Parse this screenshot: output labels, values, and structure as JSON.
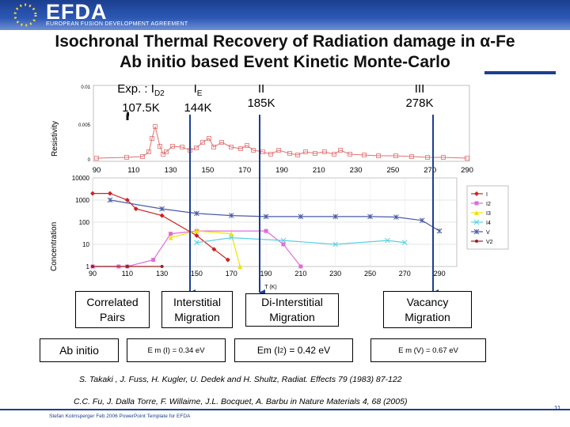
{
  "header": {
    "logo_word": "EFDA",
    "logo_subtitle": "EUROPEAN FUSION DEVELOPMENT AGREEMENT",
    "colors": {
      "band": "#1c3f8f",
      "star": "#f5d33c"
    }
  },
  "title": {
    "line1": "Isochronal Thermal Recovery of Radiation damage in α-Fe",
    "line2": "Ab initio based Event Kinetic Monte-Carlo"
  },
  "peaks": [
    {
      "label": "Exp. : I",
      "sub": "D2",
      "value": "107.5K"
    },
    {
      "label": "I",
      "sub": "E",
      "value": "144K"
    },
    {
      "label": "II",
      "sub": "",
      "value": "185K"
    },
    {
      "label": "III",
      "sub": "",
      "value": "278K"
    }
  ],
  "top_chart": {
    "ylabel": "Resistivity",
    "yticks": [
      "0.01",
      "0.005",
      "0"
    ],
    "xticks": [
      "90",
      "110",
      "130",
      "150",
      "170",
      "190",
      "210",
      "230",
      "250",
      "270",
      "290"
    ],
    "color": "#e07070"
  },
  "bottom_chart": {
    "ylabel": "Concentration",
    "yticks": [
      "10000",
      "1000",
      "100",
      "10",
      "1"
    ],
    "xticks": [
      "90",
      "110",
      "130",
      "150",
      "170",
      "190",
      "210",
      "230",
      "250",
      "270",
      "290"
    ],
    "xlabel": "T (K)",
    "legend": [
      "I",
      "I2",
      "I3",
      "I4",
      "V",
      "V2"
    ]
  },
  "chart_data": {
    "type": "line",
    "xlabel": "T (K)",
    "ylabel": "Concentration",
    "yscale": "log",
    "ylim": [
      1,
      10000
    ],
    "xlim": [
      90,
      300
    ],
    "legend_position": "right",
    "series": [
      {
        "name": "I",
        "color": "#cc2222",
        "x": [
          90,
          100,
          110,
          115,
          130,
          150,
          160,
          168
        ],
        "y": [
          2000,
          2000,
          1000,
          400,
          200,
          25,
          6,
          2
        ]
      },
      {
        "name": "I2",
        "color": "#e06cd8",
        "x": [
          90,
          105,
          110,
          125,
          135,
          150,
          190,
          200,
          210
        ],
        "y": [
          1,
          1,
          1,
          2,
          30,
          40,
          40,
          10,
          1
        ]
      },
      {
        "name": "I3",
        "color": "#f2e200",
        "x": [
          135,
          150,
          170,
          175
        ],
        "y": [
          20,
          40,
          30,
          1
        ]
      },
      {
        "name": "I4",
        "color": "#5ad0e0",
        "x": [
          150,
          170,
          200,
          230,
          260,
          270
        ],
        "y": [
          12,
          20,
          15,
          10,
          15,
          12
        ]
      },
      {
        "name": "V",
        "color": "#4a5aa8",
        "x": [
          100,
          130,
          150,
          170,
          190,
          210,
          230,
          250,
          265,
          280,
          290
        ],
        "y": [
          1000,
          400,
          250,
          200,
          180,
          180,
          180,
          180,
          170,
          120,
          40
        ]
      },
      {
        "name": "V2",
        "color": "#9a2020",
        "x": [
          90,
          110,
          130
        ],
        "y": [
          1,
          1,
          1
        ]
      }
    ]
  },
  "processes": [
    {
      "label": "Correlated Pairs"
    },
    {
      "label": "Interstitial Migration"
    },
    {
      "label": "Di-Interstitial Migration"
    },
    {
      "label": "Vacancy Migration"
    }
  ],
  "energies": {
    "ab_initio": "Ab initio",
    "e1": "E m (I) = 0.34 eV",
    "e2": "Em (I",
    "e2_sub": "2",
    "e2_tail": ") = 0.42 eV",
    "e3": "E m (V) = 0.67 eV"
  },
  "references": {
    "r1": "S. Takaki , J. Fuss, H. Kugler, U. Dedek and H. Shultz, Radiat. Effects 79 (1983) 87-122",
    "r2": "C.C. Fu, J. Dalla Torre, F. Willaime, J.L. Bocquet, A. Barbu in Nature Materials 4, 68 (2005)"
  },
  "footer": {
    "credit": "Stefan Kolmsperger Feb 2006 PowerPoint Template for EFDA",
    "page_number": "11"
  }
}
